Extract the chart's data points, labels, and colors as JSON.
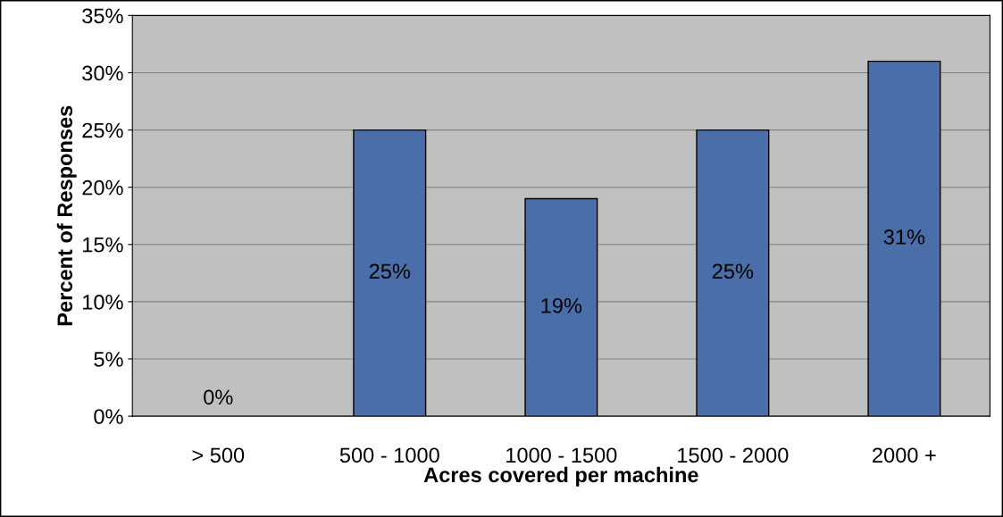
{
  "chart_data": {
    "type": "bar",
    "xlabel": "Acres covered per machine",
    "ylabel": "Percent of Responses",
    "categories": [
      "> 500",
      "500 - 1000",
      "1000 - 1500",
      "1500 - 2000",
      "2000 +"
    ],
    "values": [
      0,
      25,
      19,
      25,
      31
    ],
    "value_labels": [
      "0%",
      "25%",
      "19%",
      "25%",
      "31%"
    ],
    "color": "#4a6ea9",
    "ylim": [
      0,
      35
    ],
    "yticks": [
      {
        "value": 0,
        "label": "0%"
      },
      {
        "value": 5,
        "label": "5%"
      },
      {
        "value": 10,
        "label": "10%"
      },
      {
        "value": 15,
        "label": "15%"
      },
      {
        "value": 20,
        "label": "20%"
      },
      {
        "value": 25,
        "label": "25%"
      },
      {
        "value": 30,
        "label": "30%"
      },
      {
        "value": 35,
        "label": "35%"
      }
    ],
    "grid": "y",
    "legend": false
  }
}
